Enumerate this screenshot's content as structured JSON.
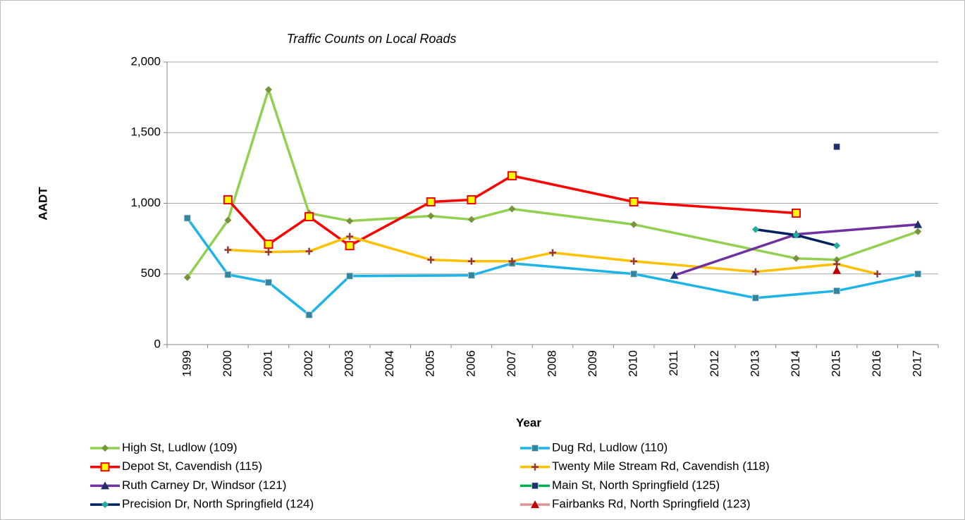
{
  "chart_data": {
    "type": "line",
    "title": "Traffic Counts on Local Roads",
    "x_label": "Year",
    "y_label": "AADT",
    "categories": [
      "1999",
      "2000",
      "2001",
      "2002",
      "2003",
      "2004",
      "2005",
      "2006",
      "2007",
      "2008",
      "2009",
      "2010",
      "2011",
      "2012",
      "2013",
      "2014",
      "2015",
      "2016",
      "2017"
    ],
    "ylim": [
      0,
      2000
    ],
    "yticks": [
      0,
      500,
      {
        "value": 1000,
        "label": "1,000"
      },
      {
        "value": 1500,
        "label": "1,500"
      },
      {
        "value": 2000,
        "label": "2,000"
      }
    ],
    "grid": true,
    "connect_gaps": true,
    "legend": "bottom",
    "series": [
      {
        "name": "High St, Ludlow (109)",
        "color": "#92d050",
        "marker": "diamond",
        "marker_color": "#77933c",
        "values": [
          475,
          880,
          1805,
          930,
          875,
          null,
          910,
          885,
          960,
          null,
          null,
          850,
          null,
          null,
          null,
          610,
          600,
          null,
          800
        ]
      },
      {
        "name": "Dug Rd, Ludlow (110)",
        "color": "#1fb4e8",
        "marker": "square",
        "marker_color": "#31859c",
        "values": [
          895,
          495,
          440,
          210,
          485,
          null,
          null,
          490,
          575,
          null,
          null,
          500,
          null,
          null,
          330,
          null,
          380,
          null,
          500
        ]
      },
      {
        "name": "Depot St, Cavendish (115)",
        "color": "#ff0000",
        "marker": "square-open",
        "marker_color": "#ffff00",
        "values": [
          null,
          1025,
          710,
          905,
          700,
          null,
          1010,
          1025,
          1195,
          null,
          null,
          1010,
          null,
          null,
          null,
          930,
          null,
          null,
          null
        ]
      },
      {
        "name": "Twenty Mile Stream Rd, Cavendish (118)",
        "color": "#ffc000",
        "marker": "plus",
        "marker_color": "#953735",
        "values": [
          null,
          670,
          655,
          660,
          765,
          null,
          600,
          590,
          590,
          650,
          null,
          590,
          null,
          null,
          515,
          null,
          570,
          500,
          null
        ]
      },
      {
        "name": "Ruth Carney Dr, Windsor (121)",
        "color": "#7030a0",
        "marker": "triangle",
        "marker_color": "#1f2d6b",
        "values": [
          null,
          null,
          null,
          null,
          null,
          null,
          null,
          null,
          null,
          null,
          null,
          null,
          490,
          null,
          null,
          780,
          null,
          null,
          850
        ]
      },
      {
        "name": "Main St, North Springfield (125)",
        "color": "#00b050",
        "marker": "square",
        "marker_color": "#1f2d6b",
        "values": [
          null,
          null,
          null,
          null,
          null,
          null,
          null,
          null,
          null,
          null,
          null,
          null,
          null,
          null,
          null,
          null,
          1400,
          null,
          null
        ]
      },
      {
        "name": "Precision Dr, North Springfield (124)",
        "color": "#002060",
        "marker": "diamond",
        "marker_color": "#1fae9c",
        "values": [
          null,
          null,
          null,
          null,
          null,
          null,
          null,
          null,
          null,
          null,
          null,
          null,
          null,
          null,
          815,
          775,
          700,
          null,
          null
        ]
      },
      {
        "name": "Fairbanks Rd, North Springfield (123)",
        "color": "#d99694",
        "marker": "triangle",
        "marker_color": "#c00000",
        "values": [
          null,
          null,
          null,
          null,
          null,
          null,
          null,
          null,
          null,
          null,
          null,
          null,
          null,
          null,
          null,
          null,
          525,
          null,
          null
        ]
      }
    ]
  }
}
